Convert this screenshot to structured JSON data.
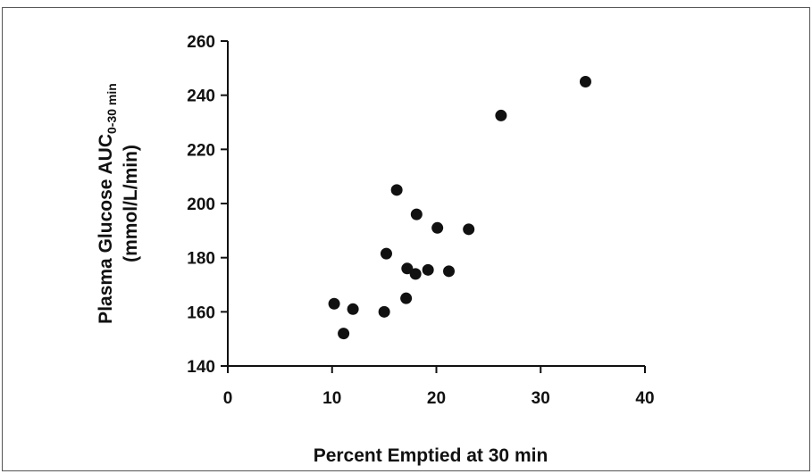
{
  "chart_data": {
    "type": "scatter",
    "xlabel": "Percent Emptied at 30 min",
    "ylabel": {
      "line1_main": "Plasma Glucose AUC",
      "line1_sub": "0-30 min",
      "line2": "(mmol/L/min)"
    },
    "xlim": [
      0,
      40
    ],
    "ylim": [
      140,
      260
    ],
    "xticks": [
      "0",
      "10",
      "20",
      "30",
      "40"
    ],
    "yticks": [
      "140",
      "160",
      "180",
      "200",
      "220",
      "240",
      "260"
    ],
    "grid": false,
    "legend": "none",
    "marker_color": "#111111",
    "points": [
      {
        "x": 10.2,
        "y": 163
      },
      {
        "x": 11.1,
        "y": 152
      },
      {
        "x": 12.0,
        "y": 161
      },
      {
        "x": 15.0,
        "y": 160
      },
      {
        "x": 15.2,
        "y": 181.5
      },
      {
        "x": 16.2,
        "y": 205
      },
      {
        "x": 17.1,
        "y": 165
      },
      {
        "x": 17.2,
        "y": 176
      },
      {
        "x": 18.0,
        "y": 174
      },
      {
        "x": 18.1,
        "y": 196
      },
      {
        "x": 19.2,
        "y": 175.5
      },
      {
        "x": 20.1,
        "y": 191
      },
      {
        "x": 21.2,
        "y": 175
      },
      {
        "x": 23.1,
        "y": 190.5
      },
      {
        "x": 26.2,
        "y": 232.5
      },
      {
        "x": 34.3,
        "y": 245
      }
    ]
  }
}
